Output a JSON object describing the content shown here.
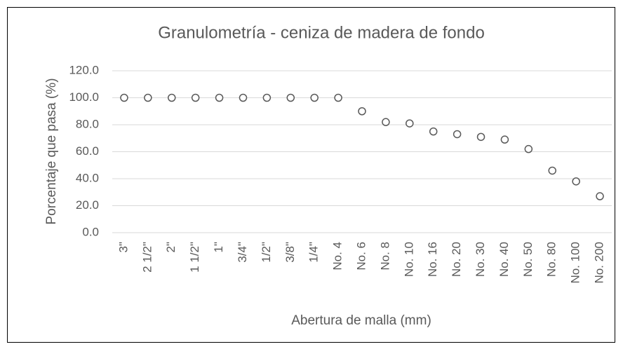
{
  "chart_data": {
    "type": "line",
    "title": "Granulometría - ceniza de madera de fondo",
    "xlabel": "Abertura de malla (mm)",
    "ylabel": "Porcentaje que pasa (%)",
    "categories": [
      "3\"",
      "2 1/2\"",
      "2\"",
      "1 1/2\"",
      "1\"",
      "3/4\"",
      "1/2\"",
      "3/8\"",
      "1/4\"",
      "No. 4",
      "No. 6",
      "No. 8",
      "No. 10",
      "No. 16",
      "No. 20",
      "No. 30",
      "No. 40",
      "No. 50",
      "No. 80",
      "No. 100",
      "No. 200"
    ],
    "series": [
      {
        "name": "Porcentaje que pasa",
        "color": "#595959",
        "values": [
          100,
          100,
          100,
          100,
          100,
          100,
          100,
          100,
          100,
          100,
          90,
          82,
          81,
          75,
          73,
          71,
          69,
          62,
          46,
          38,
          27
        ]
      }
    ],
    "ylim": [
      0,
      120
    ],
    "yticks": [
      {
        "value": 0,
        "label": "0.0"
      },
      {
        "value": 20,
        "label": "20.0"
      },
      {
        "value": 40,
        "label": "40.0"
      },
      {
        "value": 60,
        "label": "60.0"
      },
      {
        "value": 80,
        "label": "80.0"
      },
      {
        "value": 100,
        "label": "100.0"
      },
      {
        "value": 120,
        "label": "120.0"
      }
    ],
    "grid": true
  }
}
